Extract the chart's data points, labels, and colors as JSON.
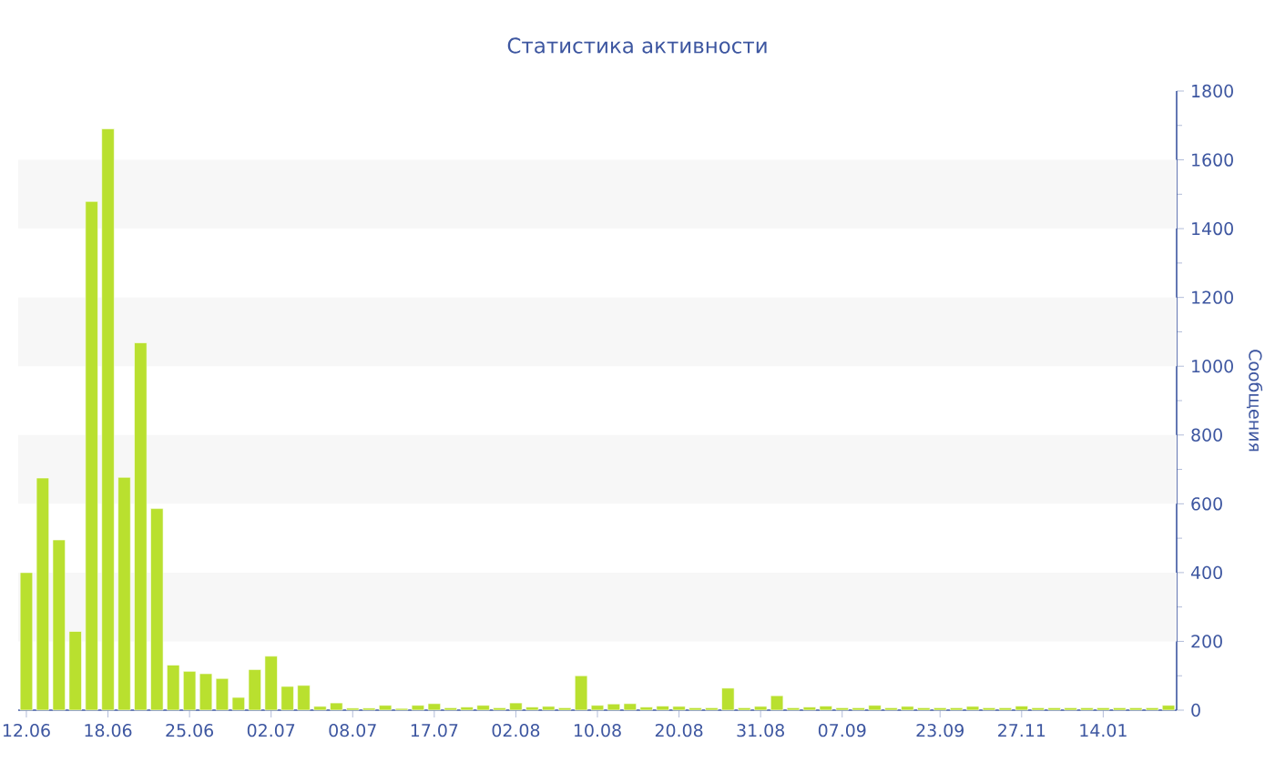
{
  "chart_data": {
    "type": "bar",
    "title": "Статистика активности",
    "ylabel": "Сообщения",
    "categories": [
      "12.06",
      null,
      null,
      null,
      null,
      "18.06",
      null,
      null,
      null,
      null,
      "25.06",
      null,
      null,
      null,
      null,
      "02.07",
      null,
      null,
      null,
      null,
      "08.07",
      null,
      null,
      null,
      null,
      "17.07",
      null,
      null,
      null,
      null,
      "02.08",
      null,
      null,
      null,
      null,
      "10.08",
      null,
      null,
      null,
      null,
      "20.08",
      null,
      null,
      null,
      null,
      "31.08",
      null,
      null,
      null,
      null,
      "07.09",
      null,
      null,
      null,
      null,
      null,
      "23.09",
      null,
      null,
      null,
      null,
      "27.11",
      null,
      null,
      null,
      null,
      "14.01",
      null,
      null,
      null,
      null
    ],
    "values": [
      400,
      675,
      495,
      229,
      1479,
      1690,
      677,
      1068,
      586,
      131,
      113,
      106,
      92,
      37,
      118,
      157,
      69,
      72,
      11,
      21,
      6,
      6,
      14,
      5,
      14,
      19,
      7,
      9,
      14,
      7,
      21,
      9,
      11,
      7,
      100,
      14,
      18,
      19,
      9,
      12,
      11,
      7,
      7,
      64,
      7,
      11,
      42,
      7,
      9,
      12,
      7,
      7,
      14,
      7,
      11,
      7,
      7,
      7,
      11,
      7,
      7,
      12,
      7,
      7,
      7,
      7,
      7,
      7,
      7,
      7,
      14
    ],
    "color": "#b9e02f",
    "ylim": [
      0,
      1800
    ],
    "yticks": [
      0,
      200,
      400,
      600,
      800,
      1000,
      1200,
      1400,
      1600,
      1800
    ],
    "bands": [
      {
        "axis": "y",
        "from": 200,
        "to": 400,
        "color": "#f7f7f7"
      },
      {
        "axis": "y",
        "from": 600,
        "to": 800,
        "color": "#f7f7f7"
      },
      {
        "axis": "y",
        "from": 1000,
        "to": 1200,
        "color": "#f7f7f7"
      },
      {
        "axis": "y",
        "from": 1400,
        "to": 1600,
        "color": "#f7f7f7"
      }
    ]
  }
}
